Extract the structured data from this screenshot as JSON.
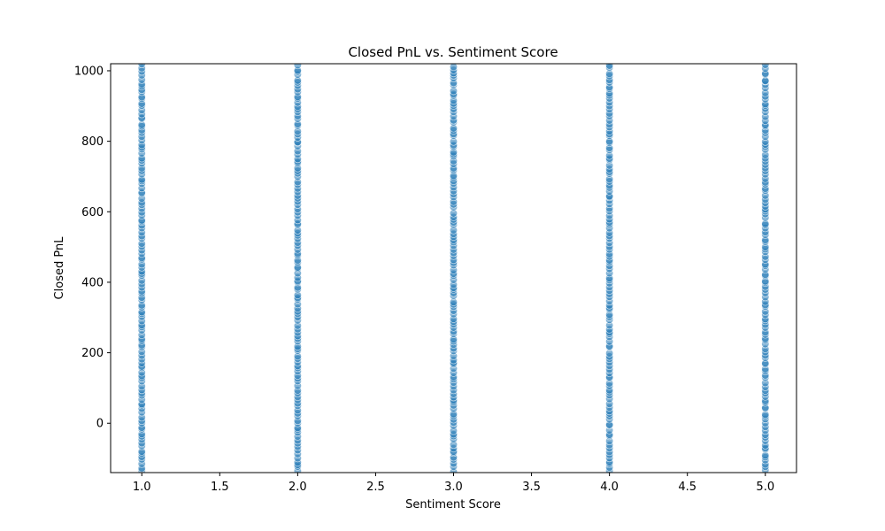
{
  "chart_data": {
    "type": "scatter",
    "title": "Closed PnL vs. Sentiment Score",
    "xlabel": "Sentiment Score",
    "ylabel": "Closed PnL",
    "xlim": [
      0.8,
      5.2
    ],
    "ylim": [
      -140,
      1020
    ],
    "xticks": [
      1.0,
      1.5,
      2.0,
      2.5,
      3.0,
      3.5,
      4.0,
      4.5,
      5.0
    ],
    "xtick_labels": [
      "1.0",
      "1.5",
      "2.0",
      "2.5",
      "3.0",
      "3.5",
      "4.0",
      "4.5",
      "5.0"
    ],
    "yticks": [
      0,
      200,
      400,
      600,
      800,
      1000
    ],
    "ytick_labels": [
      "0",
      "200",
      "400",
      "600",
      "800",
      "1000"
    ],
    "grid": false,
    "legend": "none",
    "color": "#1f77b4",
    "series": [
      {
        "x": 1.0,
        "y_range": [
          -140,
          1020
        ],
        "n_points": 120
      },
      {
        "x": 2.0,
        "y_range": [
          -140,
          1020
        ],
        "n_points": 120
      },
      {
        "x": 3.0,
        "y_range": [
          -140,
          1020
        ],
        "n_points": 120
      },
      {
        "x": 4.0,
        "y_range": [
          -140,
          1020
        ],
        "n_points": 120
      },
      {
        "x": 5.0,
        "y_range": [
          -140,
          1020
        ],
        "n_points": 120
      }
    ]
  }
}
